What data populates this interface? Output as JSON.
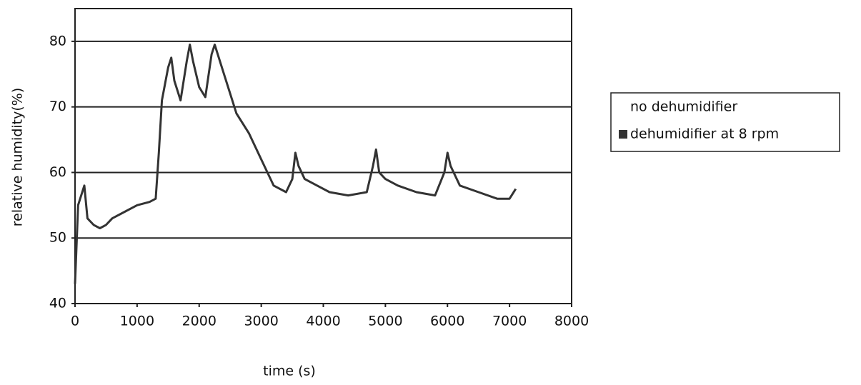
{
  "chart_data": {
    "type": "line",
    "x_label": "time (s)",
    "y_label": "relative humidity(%)",
    "x": [
      0,
      50,
      150,
      200,
      300,
      400,
      500,
      600,
      800,
      1000,
      1200,
      1300,
      1350,
      1400,
      1500,
      1550,
      1600,
      1700,
      1800,
      1850,
      1900,
      2000,
      2100,
      2200,
      2250,
      2300,
      2400,
      2500,
      2600,
      2800,
      3000,
      3200,
      3400,
      3500,
      3550,
      3600,
      3700,
      3900,
      4100,
      4400,
      4700,
      4800,
      4850,
      4900,
      5000,
      5200,
      5500,
      5800,
      5950,
      6000,
      6050,
      6200,
      6500,
      6800,
      7000,
      7100
    ],
    "series": [
      {
        "name": "no dehumidifier",
        "color": "#ffffff",
        "values": [
          null,
          null,
          null,
          null,
          null,
          null,
          null,
          null,
          null,
          null,
          null,
          null,
          null,
          null,
          null,
          null,
          null,
          null,
          null,
          null,
          null,
          null,
          null,
          null,
          null,
          null,
          null,
          null,
          null,
          null,
          null,
          null,
          null,
          null,
          null,
          null,
          null,
          null,
          null,
          null,
          null,
          null,
          null,
          null,
          null,
          null,
          null,
          null,
          null,
          null,
          null,
          null,
          null,
          null,
          null,
          null
        ]
      },
      {
        "name": "dehumidifier at 8 rpm",
        "color": "#333333",
        "values": [
          43,
          55,
          58,
          53,
          52,
          51.5,
          52,
          53,
          54,
          55,
          55.5,
          56,
          63,
          71,
          76,
          77.5,
          74,
          71,
          77,
          79.5,
          77,
          73,
          71.5,
          78,
          79.5,
          78,
          75,
          72,
          69,
          66,
          62,
          58,
          57,
          59,
          63,
          61,
          59,
          58,
          57,
          56.5,
          57,
          61,
          63.5,
          60,
          59,
          58,
          57,
          56.5,
          60,
          63,
          61,
          58,
          57,
          56,
          56,
          57.5
        ]
      }
    ],
    "xlim": [
      0,
      8000
    ],
    "xticks": [
      0,
      1000,
      2000,
      3000,
      4000,
      5000,
      6000,
      7000,
      8000
    ],
    "ylim": [
      40,
      85
    ],
    "yticks": [
      40,
      50,
      60,
      70,
      80
    ],
    "grid": true,
    "legend": "right"
  }
}
